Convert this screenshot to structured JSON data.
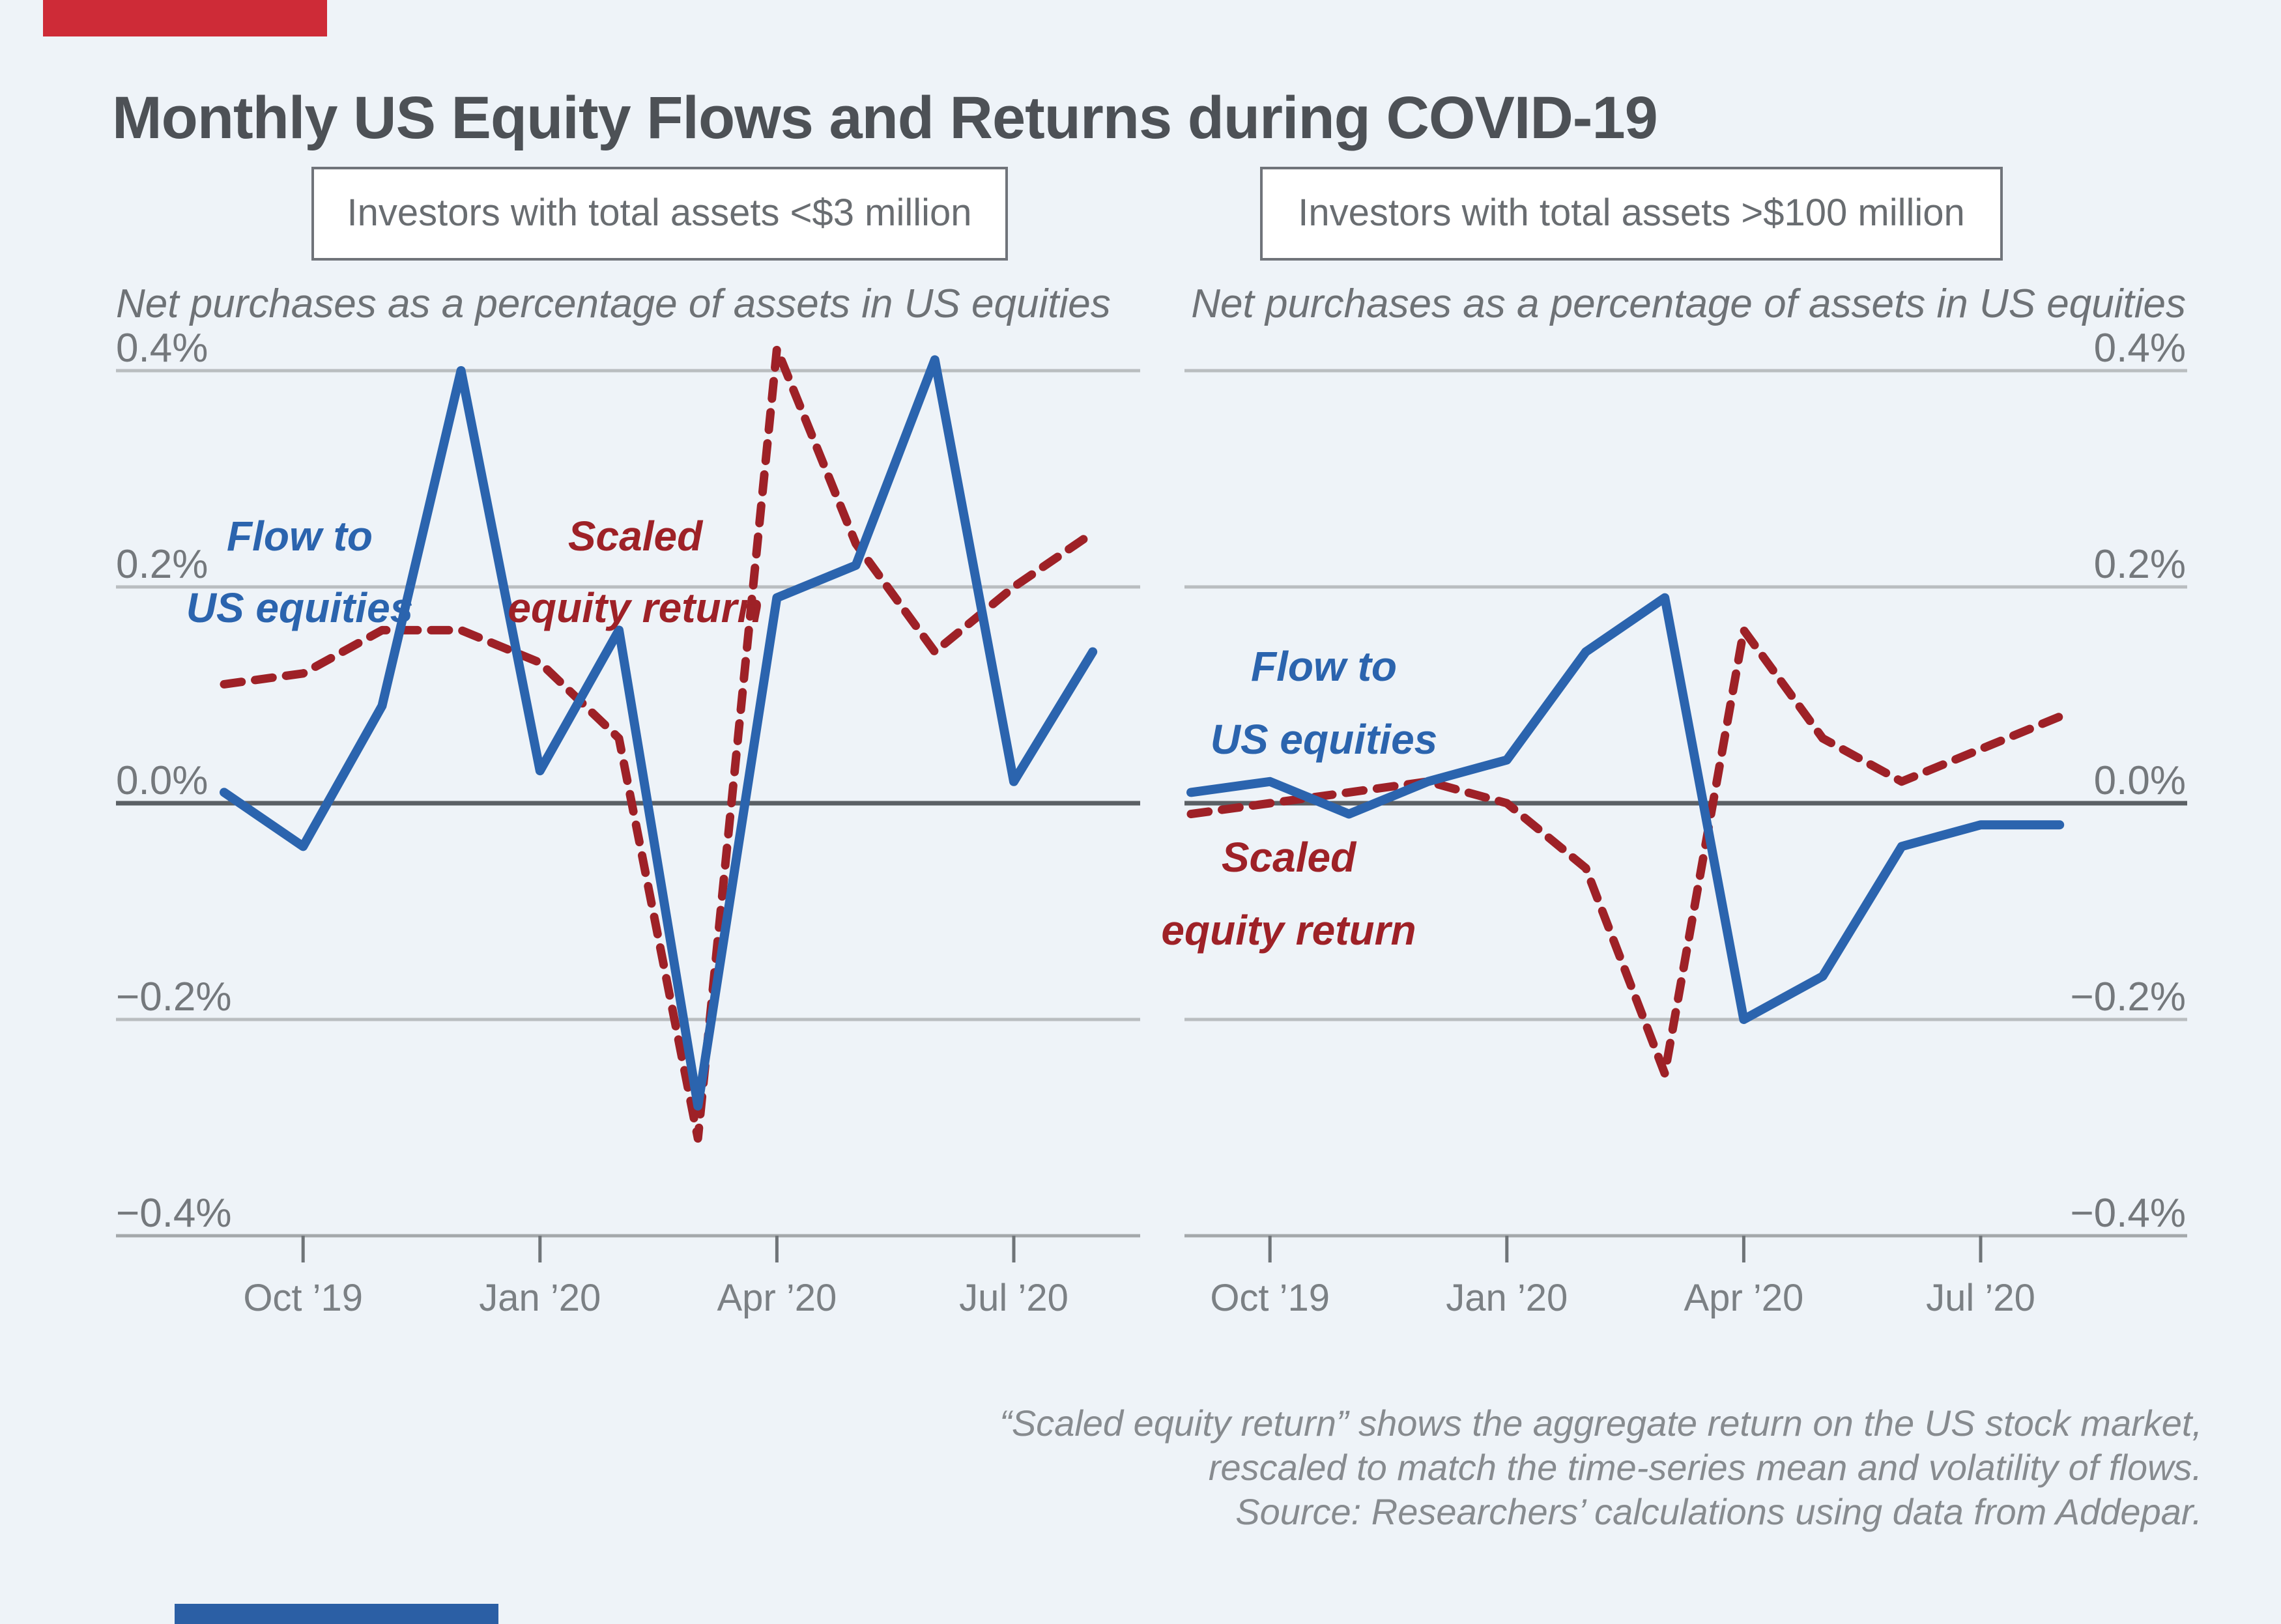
{
  "title": "Monthly US Equity Flows and Returns during COVID-19",
  "panels": [
    {
      "header": "Investors with total assets <$3 million",
      "axis_note": "Net purchases as a percentage of assets in US equities"
    },
    {
      "header": "Investors with total assets >$100 million",
      "axis_note": "Net purchases as a percentage of assets in US equities"
    }
  ],
  "legend": {
    "flow_line1": "Flow to",
    "flow_line2": "US equities",
    "return_line1": "Scaled",
    "return_line2": "equity return"
  },
  "y_axis": {
    "tick_labels": [
      "0.4%",
      "0.2%",
      "0.0%",
      "−0.2%",
      "−0.4%"
    ],
    "tick_values": [
      0.4,
      0.2,
      0.0,
      -0.2,
      -0.4
    ]
  },
  "x_axis": {
    "tick_labels": [
      "Oct ’19",
      "Jan ’20",
      "Apr ’20",
      "Jul ’20"
    ],
    "tick_month_index": [
      1,
      4,
      7,
      10
    ]
  },
  "footnote": [
    "“Scaled equity return” shows the aggregate return on the US stock market,",
    "rescaled to match the time-series mean and volatility of flows.",
    "Source: Researchers’ calculations using data from Addepar."
  ],
  "colors": {
    "background": "#eef3f8",
    "flow_blue": "#2b64ae",
    "return_red": "#9e2127",
    "grid_light": "#b9bdc0",
    "zero_line": "#5b6065",
    "axis_line": "#a4a8ab",
    "tick": "#6f7478",
    "tick_label": "#7b8084",
    "y_label": "#74787c",
    "subtitle_gray": "#6e7276",
    "title_gray": "#4d5156",
    "box_border": "#70747a",
    "box_text": "#696d71",
    "footnote_gray": "#878b8f",
    "accent_red": "#ce2b37",
    "accent_blue": "#2b5fa5"
  },
  "chart_data": [
    {
      "type": "line",
      "title": "Investors with total assets <$3 million",
      "x": [
        "Sep '19",
        "Oct '19",
        "Nov '19",
        "Dec '19",
        "Jan '20",
        "Feb '20",
        "Mar '20",
        "Apr '20",
        "May '20",
        "Jun '20",
        "Jul '20",
        "Aug '20"
      ],
      "series": [
        {
          "name": "Flow to US equities",
          "style": "solid",
          "values": [
            0.01,
            -0.04,
            0.09,
            0.4,
            0.03,
            0.16,
            -0.28,
            0.19,
            0.22,
            0.41,
            0.02,
            0.14
          ]
        },
        {
          "name": "Scaled equity return",
          "style": "dashed",
          "values": [
            0.11,
            0.12,
            0.16,
            0.16,
            0.13,
            0.06,
            -0.31,
            0.42,
            0.24,
            0.14,
            0.2,
            0.25
          ]
        }
      ],
      "ylabel": "Net purchases as a percentage of assets in US equities",
      "ylim": [
        -0.4,
        0.4
      ],
      "grid": "horizontal only",
      "legend_position": "labels on chart"
    },
    {
      "type": "line",
      "title": "Investors with total assets >$100 million",
      "x": [
        "Sep '19",
        "Oct '19",
        "Nov '19",
        "Dec '19",
        "Jan '20",
        "Feb '20",
        "Mar '20",
        "Apr '20",
        "May '20",
        "Jun '20",
        "Jul '20",
        "Aug '20"
      ],
      "series": [
        {
          "name": "Flow to US equities",
          "style": "solid",
          "values": [
            0.01,
            0.02,
            -0.01,
            0.02,
            0.04,
            0.14,
            0.19,
            -0.2,
            -0.16,
            -0.04,
            -0.02,
            -0.02
          ]
        },
        {
          "name": "Scaled equity return",
          "style": "dashed",
          "values": [
            -0.01,
            0.0,
            0.01,
            0.02,
            0.0,
            -0.06,
            -0.25,
            0.16,
            0.06,
            0.02,
            0.05,
            0.08
          ]
        }
      ],
      "ylabel": "Net purchases as a percentage of assets in US equities",
      "ylim": [
        -0.4,
        0.4
      ],
      "grid": "horizontal only",
      "legend_position": "labels on chart"
    }
  ]
}
